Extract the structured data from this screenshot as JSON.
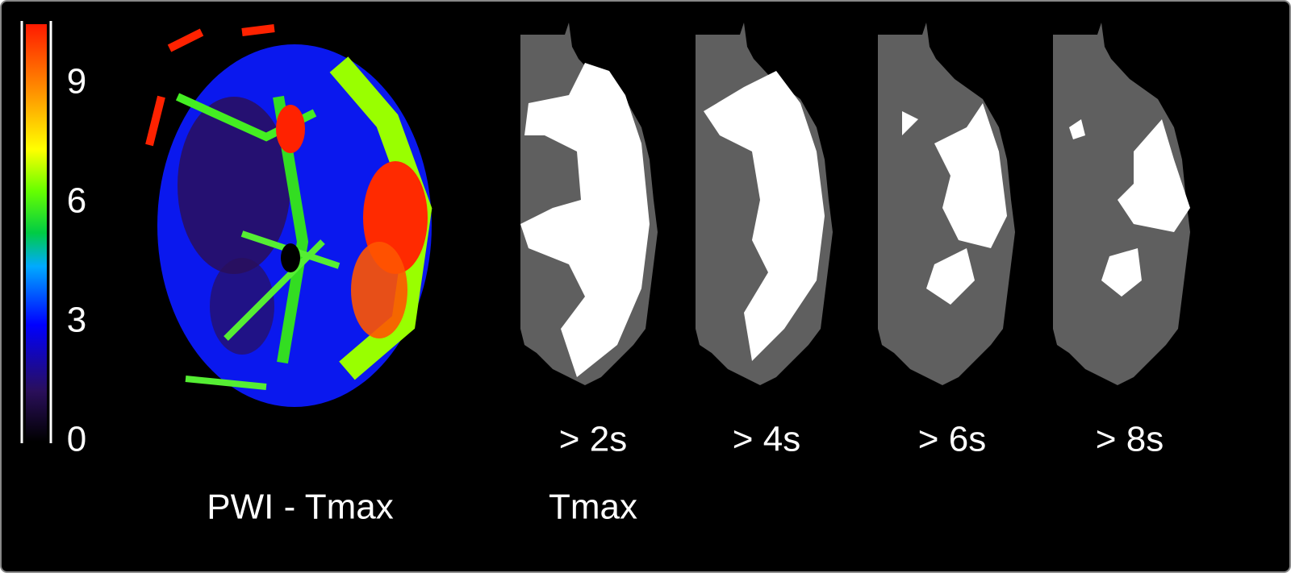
{
  "colorbar": {
    "lim": [
      0,
      10.5
    ],
    "ticks": [
      0,
      3,
      6,
      9
    ]
  },
  "left_label": "PWI - Tmax",
  "right_label": "Tmax",
  "thresholds": [
    "> 2s",
    "> 4s",
    "> 6s",
    "> 8s"
  ]
}
